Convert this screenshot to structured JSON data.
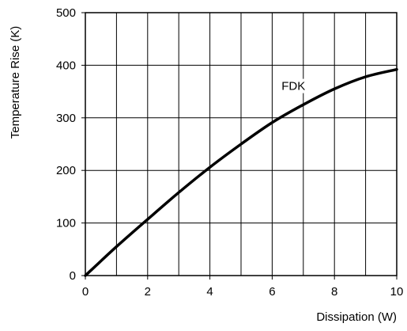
{
  "chart_data": {
    "type": "line",
    "title": "",
    "xlabel": "Dissipation (W)",
    "ylabel": "Temperature Rise (K)",
    "xlim": [
      0,
      10
    ],
    "ylim": [
      0,
      500
    ],
    "x_ticks": [
      0,
      2,
      4,
      6,
      8,
      10
    ],
    "y_ticks": [
      0,
      100,
      200,
      300,
      400,
      500
    ],
    "x_ticks_labels": [
      "0",
      "2",
      "4",
      "6",
      "8",
      "10"
    ],
    "y_ticks_labels": [
      "0",
      "100",
      "200",
      "300",
      "400",
      "500"
    ],
    "x_minor_step": 1,
    "y_minor_step": 100,
    "grid": true,
    "series": [
      {
        "name": "FDK",
        "x": [
          0,
          1,
          2,
          3,
          4,
          5,
          6,
          7,
          8,
          9,
          10
        ],
        "values": [
          0,
          55,
          107,
          158,
          206,
          250,
          291,
          325,
          355,
          378,
          392
        ]
      }
    ],
    "annotations": [
      {
        "text": "FDK",
        "x": 6.3,
        "y": 353
      }
    ]
  }
}
